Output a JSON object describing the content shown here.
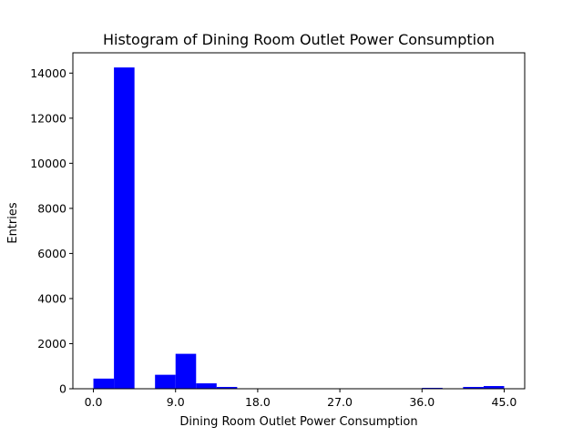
{
  "chart_data": {
    "type": "bar",
    "title": "Histogram of Dining Room Outlet Power Consumption",
    "xlabel": "Dining Room Outlet Power Consumption",
    "ylabel": "Entries",
    "xlim": [
      -2.25,
      47.25
    ],
    "ylim": [
      0,
      14900
    ],
    "x_ticks": [
      0,
      9,
      18,
      27,
      36,
      45
    ],
    "x_tick_labels": [
      "0.0",
      "9.0",
      "18.0",
      "27.0",
      "36.0",
      "45.0"
    ],
    "y_ticks": [
      0,
      2000,
      4000,
      6000,
      8000,
      10000,
      12000,
      14000
    ],
    "y_tick_labels": [
      "0",
      "2000",
      "4000",
      "6000",
      "8000",
      "10000",
      "12000",
      "14000"
    ],
    "bin_edges": [
      0,
      2.25,
      4.5,
      6.75,
      9,
      11.25,
      13.5,
      15.75,
      18,
      20.25,
      22.5,
      24.75,
      27,
      29.25,
      31.5,
      33.75,
      36,
      38.25,
      40.5,
      42.75,
      45
    ],
    "values": [
      450,
      14250,
      0,
      620,
      1550,
      240,
      80,
      0,
      0,
      0,
      0,
      0,
      0,
      0,
      0,
      0,
      40,
      0,
      80,
      120
    ],
    "bar_color": "#0000ff",
    "grid": false
  }
}
